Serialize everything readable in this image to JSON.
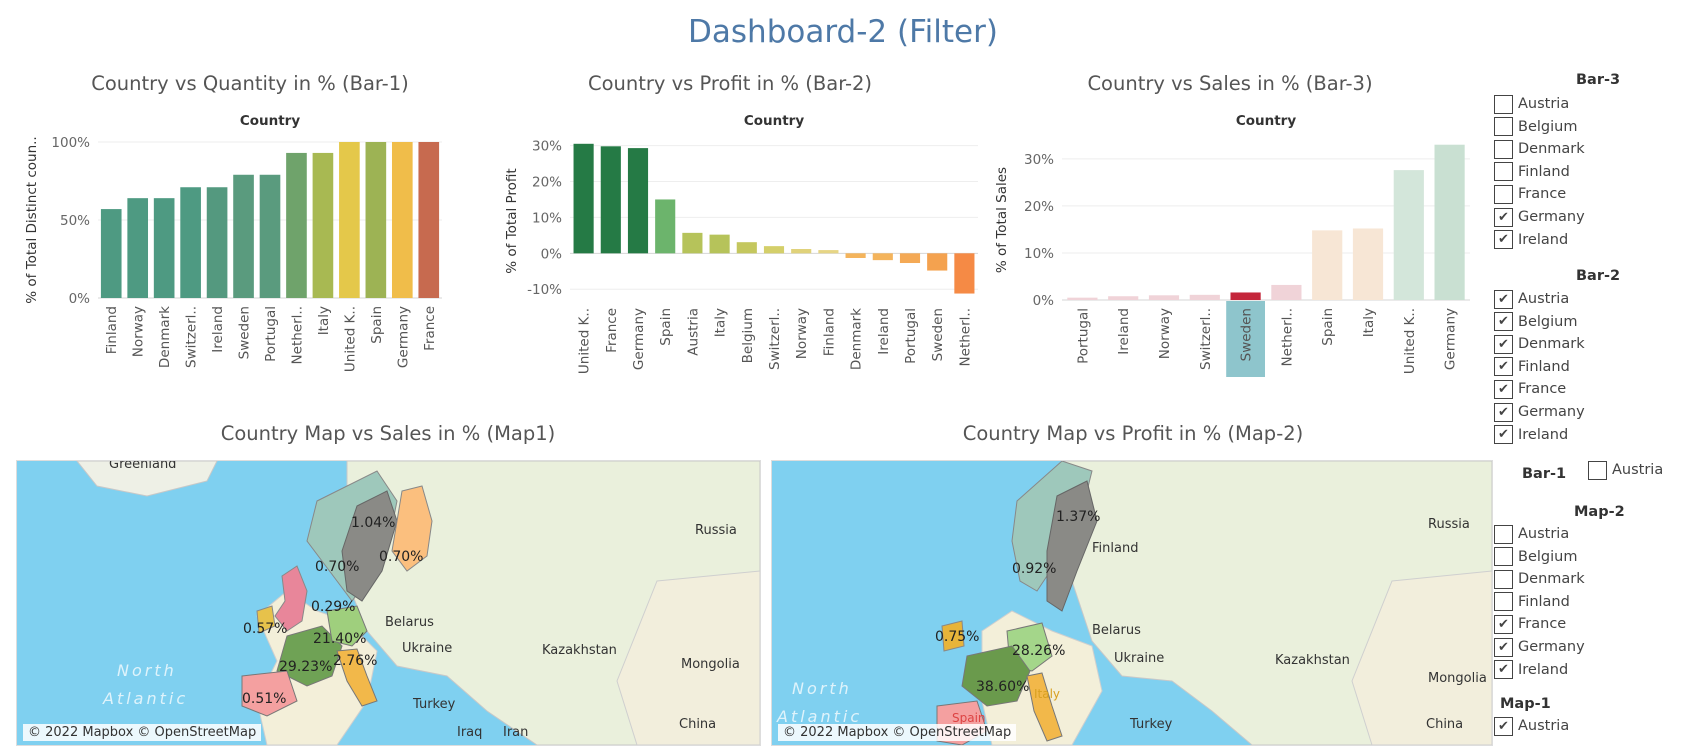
{
  "dashboard_title": "Dashboard-2 (Filter)",
  "chart_data": [
    {
      "type": "bar",
      "title": "Country vs Quantity in % (Bar-1)",
      "header": "Country",
      "ylabel": "% of Total Distinct coun..",
      "ylim": [
        0,
        100
      ],
      "yticks": [
        "0%",
        "50%",
        "100%"
      ],
      "categories": [
        "Finland",
        "Norway",
        "Denmark",
        "Switzerl..",
        "Ireland",
        "Sweden",
        "Portugal",
        "Netherl..",
        "Italy",
        "United K..",
        "Spain",
        "Germany",
        "France"
      ],
      "values": [
        57,
        64,
        64,
        71,
        71,
        79,
        79,
        93,
        93,
        100,
        100,
        100,
        100
      ],
      "colors": [
        "#4e9a82",
        "#4e9a82",
        "#4e9a82",
        "#4e9a82",
        "#54997f",
        "#5a9b7e",
        "#5a9b7e",
        "#6fa36b",
        "#a8b952",
        "#e4c84a",
        "#9db354",
        "#f0bd4a",
        "#c76a4f"
      ]
    },
    {
      "type": "bar",
      "title": "Country vs Profit in % (Bar-2)",
      "header": "Country",
      "ylabel": "% of Total Profit",
      "ylim": [
        -13,
        31
      ],
      "yticks": [
        "-10%",
        "0%",
        "10%",
        "20%",
        "30%"
      ],
      "categories": [
        "United K..",
        "France",
        "Germany",
        "Spain",
        "Austria",
        "Italy",
        "Belgium",
        "Switzerl..",
        "Norway",
        "Finland",
        "Denmark",
        "Ireland",
        "Portugal",
        "Sweden",
        "Netherl.."
      ],
      "values": [
        30.5,
        29.8,
        29.3,
        15.0,
        5.7,
        5.2,
        3.1,
        2.0,
        1.2,
        0.9,
        -1.3,
        -1.9,
        -2.7,
        -4.8,
        -11.2
      ],
      "colors": [
        "#257a45",
        "#257a45",
        "#257a45",
        "#6cb46c",
        "#b6c35a",
        "#b6c35a",
        "#c4c75e",
        "#d4cf6a",
        "#e0d27a",
        "#e6d585",
        "#f4b45c",
        "#f4b45c",
        "#f4a955",
        "#f4a24f",
        "#f58a45"
      ]
    },
    {
      "type": "bar",
      "title": "Country vs Sales in % (Bar-3)",
      "header": "Country",
      "ylabel": "% of Total Sales",
      "ylim": [
        0,
        34
      ],
      "yticks": [
        "0%",
        "10%",
        "20%",
        "30%"
      ],
      "categories": [
        "Portugal",
        "Ireland",
        "Norway",
        "Switzerl..",
        "Sweden",
        "Netherl..",
        "Spain",
        "Italy",
        "United K..",
        "Germany"
      ],
      "values": [
        0.5,
        0.8,
        1.0,
        1.1,
        1.6,
        3.2,
        14.8,
        15.2,
        27.6,
        33.0
      ],
      "colors": [
        "#f0d3d8",
        "#f0d3d8",
        "#f0d3d8",
        "#f0d3d8",
        "#c4263b",
        "#f0d3d8",
        "#f7e6d5",
        "#f7e6d5",
        "#d3e6da",
        "#c9e0d2"
      ],
      "highlighted": "Sweden"
    }
  ],
  "maps": [
    {
      "title": "Country Map vs Sales in % (Map1)",
      "places": [
        "Greenland",
        "Russia",
        "Belarus",
        "Ukraine",
        "Kazakhstan",
        "Mongolia",
        "Turkey",
        "Iraq",
        "Iran",
        "China"
      ],
      "ocean": [
        "North",
        "Atlantic"
      ],
      "labels": [
        "1.04%",
        "0.70%",
        "0.70%",
        "0.29%",
        "0.57%",
        "21.40%",
        "29.23%",
        "2.76%",
        "0.51%"
      ],
      "credit": "© 2022 Mapbox © OpenStreetMap"
    },
    {
      "title": "Country Map vs Profit in % (Map-2)",
      "places": [
        "Russia",
        "Finland",
        "Belarus",
        "Ukraine",
        "Kazakhstan",
        "Mongolia",
        "Turkey",
        "China"
      ],
      "ocean": [
        "North",
        "Atlantic"
      ],
      "labels": [
        "1.37%",
        "0.92%",
        "0.75%",
        "28.26%",
        "38.60%",
        "Spain",
        "Italy"
      ],
      "credit": "© 2022 Mapbox © OpenStreetMap"
    }
  ],
  "filters": {
    "bar3": {
      "title": "Bar-3",
      "items": [
        {
          "label": "Austria",
          "checked": false
        },
        {
          "label": "Belgium",
          "checked": false
        },
        {
          "label": "Denmark",
          "checked": false
        },
        {
          "label": "Finland",
          "checked": false
        },
        {
          "label": "France",
          "checked": false
        },
        {
          "label": "Germany",
          "checked": true
        },
        {
          "label": "Ireland",
          "checked": true
        }
      ]
    },
    "bar2": {
      "title": "Bar-2",
      "items": [
        {
          "label": "Austria",
          "checked": true
        },
        {
          "label": "Belgium",
          "checked": true
        },
        {
          "label": "Denmark",
          "checked": true
        },
        {
          "label": "Finland",
          "checked": true
        },
        {
          "label": "France",
          "checked": true
        },
        {
          "label": "Germany",
          "checked": true
        },
        {
          "label": "Ireland",
          "checked": true
        }
      ]
    },
    "bar1": {
      "title": "Bar-1",
      "items": [
        {
          "label": "Austria",
          "checked": false
        }
      ]
    },
    "map2": {
      "title": "Map-2",
      "items": [
        {
          "label": "Austria",
          "checked": false
        },
        {
          "label": "Belgium",
          "checked": false
        },
        {
          "label": "Denmark",
          "checked": false
        },
        {
          "label": "Finland",
          "checked": false
        },
        {
          "label": "France",
          "checked": true
        },
        {
          "label": "Germany",
          "checked": true
        },
        {
          "label": "Ireland",
          "checked": true
        }
      ]
    },
    "map1": {
      "title": "Map-1",
      "items": [
        {
          "label": "Austria",
          "checked": true
        }
      ]
    }
  },
  "check_glyph": "✔"
}
